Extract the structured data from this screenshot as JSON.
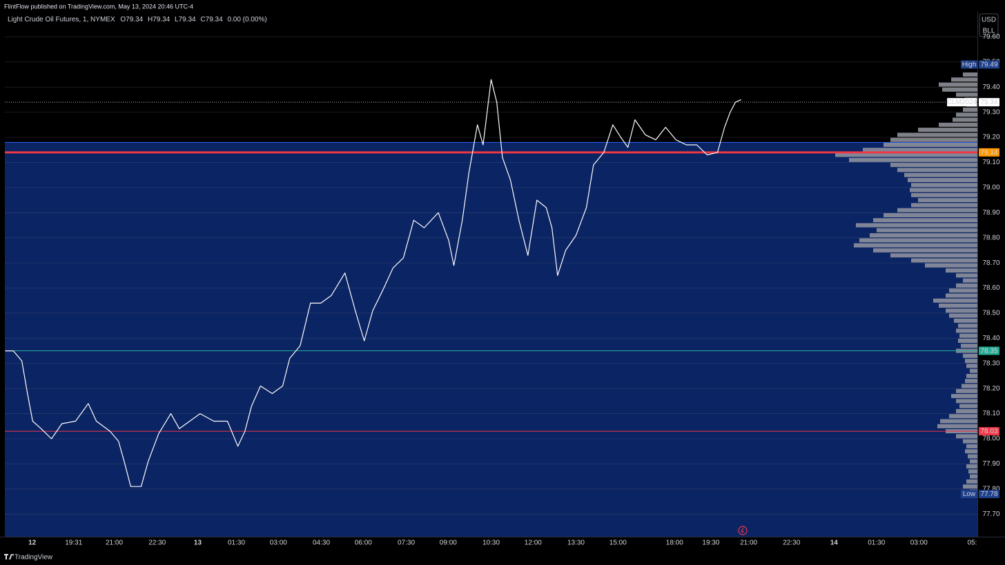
{
  "header": "FlintFlow published on TradingView.com, May 13, 2024 20:46 UTC-4",
  "toolbar": [
    "USD",
    "BLL"
  ],
  "brand": "TradingView",
  "chart_data": {
    "type": "line",
    "title": "Light Crude Oil Futures, 1, NYMEX",
    "ohlc": [
      "O79.34",
      "H79.34",
      "L79.34",
      "C79.34"
    ],
    "change": "0.00 (0.00%)",
    "color": "#ffffff",
    "x": [
      -57,
      -40,
      -22,
      -10,
      1,
      19,
      41,
      63,
      92,
      119,
      136,
      165,
      183,
      195,
      209,
      231,
      246,
      268,
      294,
      312,
      334,
      356,
      385,
      414,
      436,
      451,
      465,
      484,
      509,
      531,
      546,
      568,
      590,
      612,
      634,
      663,
      685,
      704,
      722,
      743,
      765,
      787,
      809,
      831,
      861,
      883,
      894,
      912,
      926,
      944,
      956,
      973,
      985,
      997,
      1014,
      1032,
      1051,
      1070,
      1090,
      1102,
      1114,
      1131,
      1153,
      1175,
      1190,
      1212,
      1231,
      1248,
      1263,
      1278,
      1300,
      1322,
      1343,
      1365,
      1387,
      1409,
      1431,
      1453,
      1468,
      1480,
      1491,
      1503
    ],
    "values": [
      78.35,
      78.35,
      78.31,
      78.18,
      78.07,
      78.04,
      78.0,
      78.06,
      78.07,
      78.14,
      78.07,
      78.03,
      77.99,
      77.91,
      77.81,
      77.81,
      77.91,
      78.02,
      78.1,
      78.04,
      78.07,
      78.1,
      78.07,
      78.07,
      77.97,
      78.03,
      78.13,
      78.21,
      78.18,
      78.21,
      78.32,
      78.37,
      78.54,
      78.54,
      78.57,
      78.66,
      78.51,
      78.39,
      78.51,
      78.59,
      78.68,
      78.72,
      78.87,
      78.84,
      78.9,
      78.79,
      78.69,
      78.87,
      79.06,
      79.25,
      79.17,
      79.43,
      79.34,
      79.12,
      79.03,
      78.87,
      78.73,
      78.95,
      78.92,
      78.84,
      78.65,
      78.75,
      78.81,
      78.92,
      79.09,
      79.14,
      79.25,
      79.2,
      79.16,
      79.27,
      79.21,
      79.19,
      79.24,
      79.19,
      79.17,
      79.17,
      79.13,
      79.14,
      79.24,
      79.3,
      79.34,
      79.35
    ],
    "xlim": [
      -58,
      2004
    ],
    "xticks": [
      {
        "value": 0,
        "label": "12"
      },
      {
        "value": 88,
        "label": "19:31"
      },
      {
        "value": 174,
        "label": "21:00"
      },
      {
        "value": 265,
        "label": "22:30"
      },
      {
        "value": 351,
        "label": "13"
      },
      {
        "value": 433,
        "label": "01:30"
      },
      {
        "value": 522,
        "label": "03:00"
      },
      {
        "value": 613,
        "label": "04:30"
      },
      {
        "value": 702,
        "label": "06:00"
      },
      {
        "value": 793,
        "label": "07:30"
      },
      {
        "value": 882,
        "label": "09:00"
      },
      {
        "value": 973,
        "label": "10:30"
      },
      {
        "value": 1062,
        "label": "12:00"
      },
      {
        "value": 1153,
        "label": "13:30"
      },
      {
        "value": 1242,
        "label": "15:00"
      },
      {
        "value": 1362,
        "label": "18:00"
      },
      {
        "value": 1439,
        "label": "19:30"
      },
      {
        "value": 1519,
        "label": "21:00"
      },
      {
        "value": 1610,
        "label": "22:30"
      },
      {
        "value": 1700,
        "label": "14"
      },
      {
        "value": 1790,
        "label": "01:30"
      },
      {
        "value": 1880,
        "label": "03:00"
      },
      {
        "value": 1993,
        "label": "05:"
      }
    ],
    "ylim": [
      77.61,
      79.7
    ],
    "yticks": [
      {
        "value": 77.7,
        "label": "77.70"
      },
      {
        "value": 77.8,
        "label": "77.80"
      },
      {
        "value": 77.9,
        "label": "77.90"
      },
      {
        "value": 78.0,
        "label": "78.00"
      },
      {
        "value": 78.1,
        "label": "78.10"
      },
      {
        "value": 78.2,
        "label": "78.20"
      },
      {
        "value": 78.3,
        "label": "78.30"
      },
      {
        "value": 78.4,
        "label": "78.40"
      },
      {
        "value": 78.5,
        "label": "78.50"
      },
      {
        "value": 78.6,
        "label": "78.60"
      },
      {
        "value": 78.7,
        "label": "78.70"
      },
      {
        "value": 78.8,
        "label": "78.80"
      },
      {
        "value": 78.9,
        "label": "78.90"
      },
      {
        "value": 79.0,
        "label": "79.00"
      },
      {
        "value": 79.1,
        "label": "79.10"
      },
      {
        "value": 79.2,
        "label": "79.20"
      },
      {
        "value": 79.3,
        "label": "79.30"
      },
      {
        "value": 79.4,
        "label": "79.40"
      },
      {
        "value": 79.5,
        "label": "79.50"
      },
      {
        "value": 79.6,
        "label": "79.60"
      }
    ],
    "grid": true,
    "zone": {
      "from": 79.18,
      "color": "#0b2463"
    },
    "price_line": {
      "label": "CLM2024",
      "value": 79.34
    },
    "high": {
      "label": "High",
      "value": 79.49
    },
    "low": {
      "label": "Low",
      "value": 77.78
    },
    "levels": [
      {
        "value": 79.14,
        "color": "#f23645",
        "label_color": "#ff9800",
        "width": 3
      },
      {
        "value": 78.35,
        "color": "#22ab94",
        "label_color": "#22ab94",
        "width": 1
      },
      {
        "value": 78.03,
        "color": "#f23645",
        "label_color": "#f23645",
        "width": 1
      }
    ],
    "volume_profile": {
      "color": "#9598a1",
      "prices": [
        77.79,
        77.81,
        77.83,
        77.85,
        77.87,
        77.89,
        77.91,
        77.93,
        77.95,
        77.97,
        77.99,
        78.01,
        78.03,
        78.05,
        78.07,
        78.09,
        78.11,
        78.13,
        78.15,
        78.17,
        78.19,
        78.21,
        78.23,
        78.25,
        78.27,
        78.29,
        78.31,
        78.33,
        78.35,
        78.37,
        78.39,
        78.41,
        78.43,
        78.45,
        78.47,
        78.49,
        78.51,
        78.53,
        78.55,
        78.57,
        78.59,
        78.61,
        78.63,
        78.65,
        78.67,
        78.69,
        78.71,
        78.73,
        78.75,
        78.77,
        78.79,
        78.81,
        78.83,
        78.85,
        78.87,
        78.89,
        78.91,
        78.93,
        78.95,
        78.97,
        78.99,
        79.01,
        79.03,
        79.05,
        79.07,
        79.09,
        79.11,
        79.13,
        79.15,
        79.17,
        79.19,
        79.21,
        79.23,
        79.25,
        79.27,
        79.29,
        79.31,
        79.33,
        79.35,
        79.37,
        79.39,
        79.41,
        79.43,
        79.45
      ],
      "volumes": [
        11,
        21,
        16,
        11,
        13,
        16,
        11,
        14,
        18,
        16,
        21,
        31,
        46,
        58,
        54,
        41,
        31,
        26,
        31,
        38,
        31,
        23,
        18,
        16,
        11,
        16,
        18,
        21,
        31,
        24,
        28,
        26,
        31,
        28,
        34,
        41,
        46,
        56,
        64,
        46,
        41,
        31,
        21,
        31,
        46,
        76,
        96,
        126,
        151,
        179,
        171,
        156,
        146,
        176,
        151,
        136,
        116,
        96,
        86,
        96,
        98,
        96,
        101,
        106,
        116,
        126,
        186,
        206,
        166,
        136,
        126,
        116,
        86,
        56,
        36,
        31,
        21,
        16,
        18,
        31,
        51,
        56,
        38,
        21
      ]
    }
  }
}
